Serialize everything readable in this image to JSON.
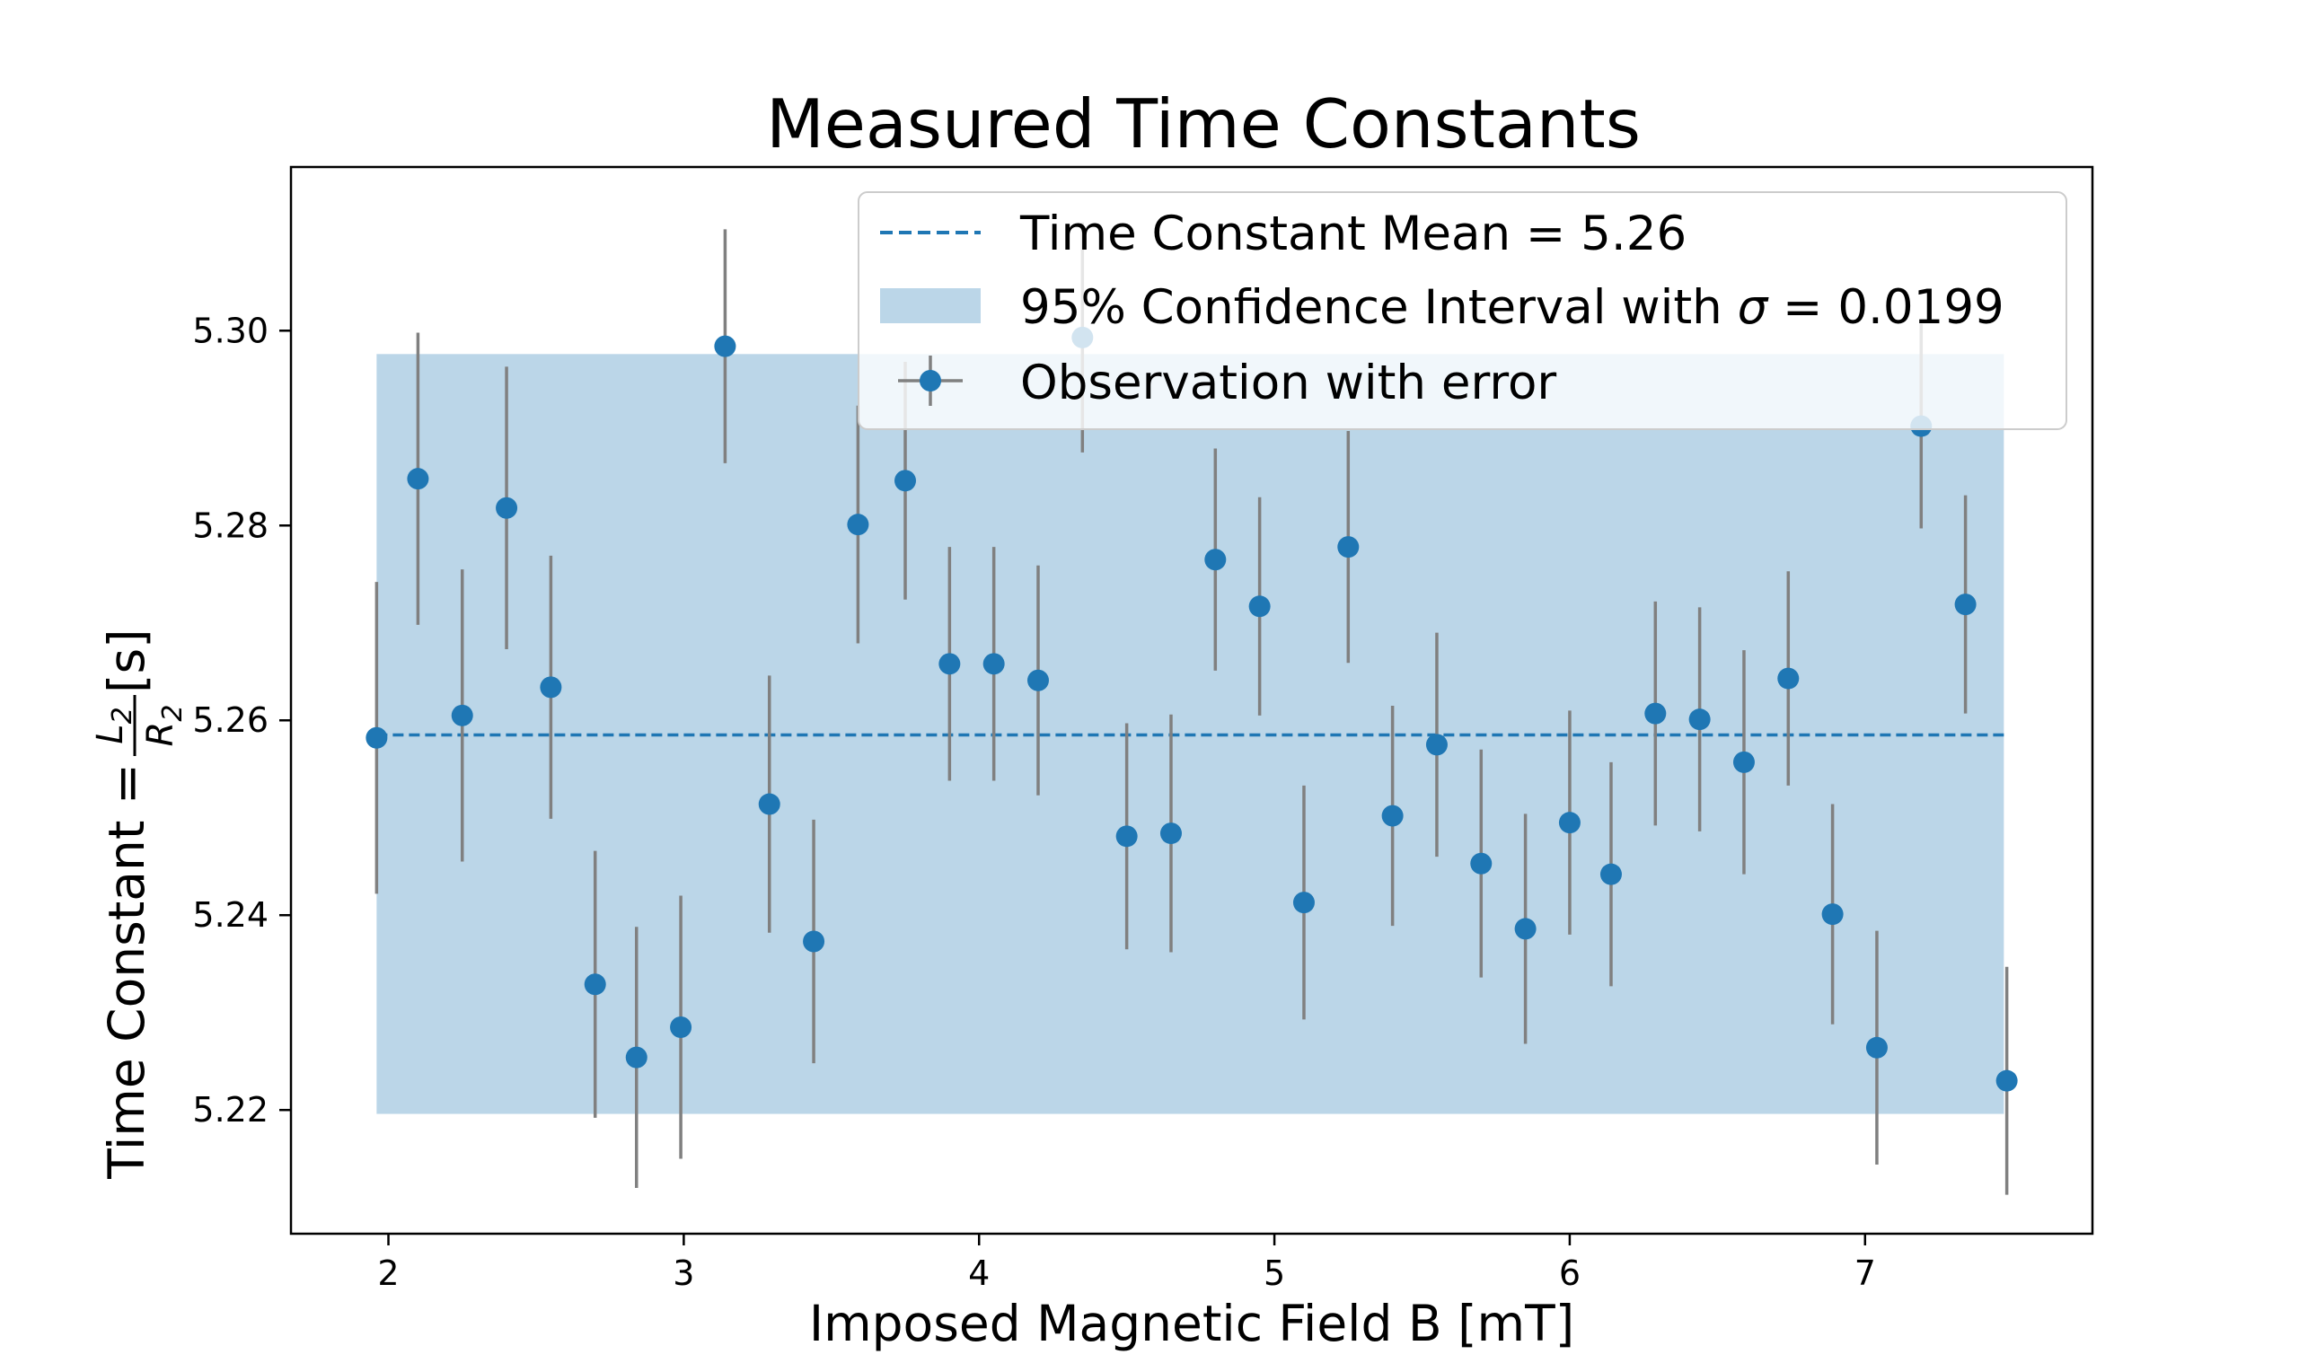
{
  "chart_data": {
    "type": "scatter",
    "title": "Measured Time Constants",
    "xlabel": "Imposed Magnetic Field B [mT]",
    "ylabel": {
      "prefix": "Time Constant = ",
      "num": "L",
      "num_sub": "2",
      "den": "R",
      "den_sub": "2",
      "suffix": " [s]"
    },
    "xlim": [
      1.67,
      7.77
    ],
    "ylim": [
      5.2073,
      5.3168
    ],
    "xticks": [
      {
        "value": 2,
        "label": "2"
      },
      {
        "value": 3,
        "label": "3"
      },
      {
        "value": 4,
        "label": "4"
      },
      {
        "value": 5,
        "label": "5"
      },
      {
        "value": 6,
        "label": "6"
      },
      {
        "value": 7,
        "label": "7"
      }
    ],
    "yticks": [
      {
        "value": 5.22,
        "label": "5.22"
      },
      {
        "value": 5.24,
        "label": "5.24"
      },
      {
        "value": 5.26,
        "label": "5.26"
      },
      {
        "value": 5.28,
        "label": "5.28"
      },
      {
        "value": 5.3,
        "label": "5.30"
      }
    ],
    "grid": false,
    "mean": 5.2585,
    "band": {
      "x": [
        1.96,
        7.47
      ],
      "y": [
        5.2196,
        5.2976
      ]
    },
    "x": [
      1.96,
      2.1,
      2.25,
      2.4,
      2.55,
      2.7,
      2.84,
      2.99,
      3.14,
      3.29,
      3.44,
      3.59,
      3.75,
      3.9,
      4.05,
      4.2,
      4.35,
      4.5,
      4.65,
      4.8,
      4.95,
      5.1,
      5.25,
      5.4,
      5.55,
      5.7,
      5.85,
      6.0,
      6.14,
      6.29,
      6.44,
      6.59,
      6.74,
      6.89,
      7.04,
      7.19,
      7.34,
      7.48
    ],
    "y": [
      5.2582,
      5.2848,
      5.2605,
      5.2818,
      5.2634,
      5.2329,
      5.2254,
      5.2285,
      5.2984,
      5.2514,
      5.2373,
      5.2801,
      5.2846,
      5.2658,
      5.2658,
      5.2641,
      5.2993,
      5.2481,
      5.2484,
      5.2765,
      5.2717,
      5.2413,
      5.2778,
      5.2502,
      5.2575,
      5.2453,
      5.2386,
      5.2495,
      5.2442,
      5.2607,
      5.2601,
      5.2557,
      5.2643,
      5.2401,
      5.2264,
      5.2902,
      5.2719,
      5.223
    ],
    "yerr": [
      0.016,
      0.015,
      0.015,
      0.0145,
      0.0135,
      0.0137,
      0.0134,
      0.0135,
      0.012,
      0.0132,
      0.0125,
      0.0122,
      0.0122,
      0.012,
      0.012,
      0.0118,
      0.0118,
      0.0116,
      0.0122,
      0.0114,
      0.0112,
      0.012,
      0.0119,
      0.0113,
      0.0115,
      0.0117,
      0.0118,
      0.0115,
      0.0115,
      0.0115,
      0.0115,
      0.0115,
      0.011,
      0.0113,
      0.012,
      0.0105,
      0.0112,
      0.0117
    ],
    "colors": {
      "point": "#1f77b4",
      "errorbar": "#808080",
      "band": "#1f77b4",
      "band_opacity": 0.3,
      "mean_line": "#1f77b4"
    },
    "legend": {
      "placement": "upper right",
      "entries": {
        "mean": "Time Constant Mean = 5.26",
        "band_prefix": "95% Confidence Interval with ",
        "band_sigma": "σ",
        "band_eq": " = ",
        "band_value": "0.0199",
        "obs": "Observation with error"
      }
    }
  }
}
